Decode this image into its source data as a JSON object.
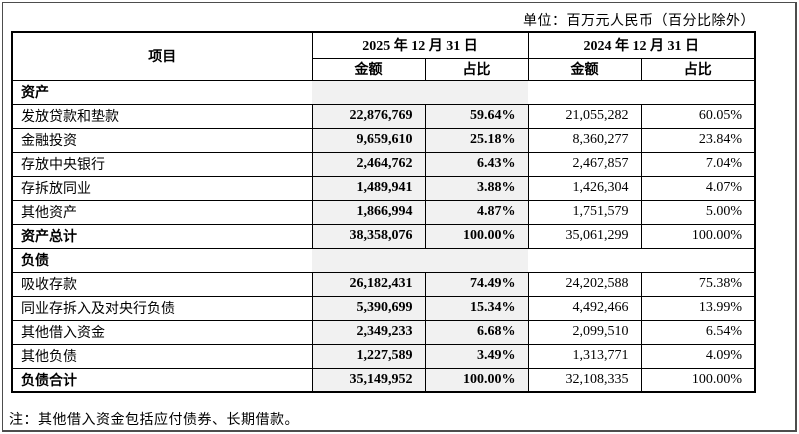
{
  "unit_note": "单位：百万元人民币（百分比除外）",
  "table": {
    "item_header": "项目",
    "col_groups": [
      {
        "label": "2025 年 12 月 31 日",
        "sub_headers": [
          "金额",
          "占比"
        ]
      },
      {
        "label": "2024 年 12 月 31 日",
        "sub_headers": [
          "金额",
          "占比"
        ]
      }
    ],
    "rows": [
      {
        "type": "section",
        "label": "资产",
        "values": [
          "",
          "",
          "",
          ""
        ]
      },
      {
        "type": "data",
        "label": "发放贷款和垫款",
        "values": [
          "22,876,769",
          "59.64%",
          "21,055,282",
          "60.05%"
        ]
      },
      {
        "type": "data",
        "label": "金融投资",
        "values": [
          "9,659,610",
          "25.18%",
          "8,360,277",
          "23.84%"
        ]
      },
      {
        "type": "data",
        "label": "存放中央银行",
        "values": [
          "2,464,762",
          "6.43%",
          "2,467,857",
          "7.04%"
        ]
      },
      {
        "type": "data",
        "label": "存拆放同业",
        "values": [
          "1,489,941",
          "3.88%",
          "1,426,304",
          "4.07%"
        ]
      },
      {
        "type": "data",
        "label": "其他资产",
        "values": [
          "1,866,994",
          "4.87%",
          "1,751,579",
          "5.00%"
        ]
      },
      {
        "type": "total",
        "label": "资产总计",
        "values": [
          "38,358,076",
          "100.00%",
          "35,061,299",
          "100.00%"
        ]
      },
      {
        "type": "section",
        "label": "负债",
        "values": [
          "",
          "",
          "",
          ""
        ]
      },
      {
        "type": "data",
        "label": "吸收存款",
        "values": [
          "26,182,431",
          "74.49%",
          "24,202,588",
          "75.38%"
        ]
      },
      {
        "type": "data",
        "label": "同业存拆入及对央行负债",
        "values": [
          "5,390,699",
          "15.34%",
          "4,492,466",
          "13.99%"
        ]
      },
      {
        "type": "data",
        "label": "其他借入资金",
        "values": [
          "2,349,233",
          "6.68%",
          "2,099,510",
          "6.54%"
        ]
      },
      {
        "type": "data",
        "label": "其他负债",
        "values": [
          "1,227,589",
          "3.49%",
          "1,313,771",
          "4.09%"
        ]
      },
      {
        "type": "total",
        "label": "负债合计",
        "values": [
          "35,149,952",
          "100.00%",
          "32,108,335",
          "100.00%"
        ]
      }
    ]
  },
  "footnote": "注：其他借入资金包括应付债券、长期借款。",
  "colors": {
    "highlight_bg": "#f1f1f1",
    "table_border": "#000000",
    "page_border": "#4d4d4d"
  }
}
